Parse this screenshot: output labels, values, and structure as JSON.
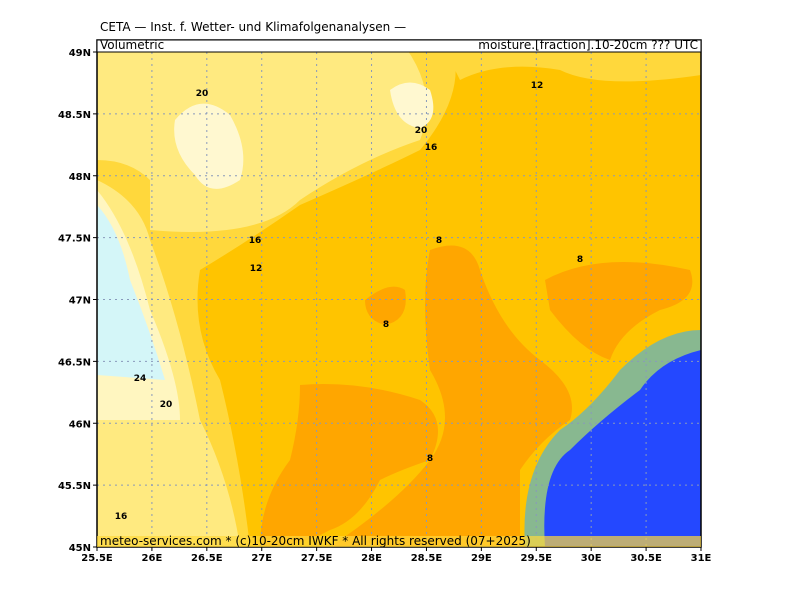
{
  "header": {
    "title": "CETA — Inst. f. Wetter- und Klimafolgenanalysen —",
    "left": "Volumetric",
    "right": "moisture.[fraction].10-20cm ??? UTC"
  },
  "footer": "meteo-services.com * (c)10-20cm IWKF * All rights reserved (07+2025)",
  "map": {
    "lonlim": [
      25.5,
      31
    ],
    "latlim": [
      45,
      49
    ],
    "lon_ticks": [
      {
        "value": 25.5,
        "label": "25.5E"
      },
      {
        "value": 26,
        "label": "26E"
      },
      {
        "value": 26.5,
        "label": "26.5E"
      },
      {
        "value": 27,
        "label": "27E"
      },
      {
        "value": 27.5,
        "label": "27.5E"
      },
      {
        "value": 28,
        "label": "28E"
      },
      {
        "value": 28.5,
        "label": "28.5E"
      },
      {
        "value": 29,
        "label": "29E"
      },
      {
        "value": 29.5,
        "label": "29.5E"
      },
      {
        "value": 30,
        "label": "30E"
      },
      {
        "value": 30.5,
        "label": "30.5E"
      },
      {
        "value": 31,
        "label": "31E"
      }
    ],
    "lat_ticks": [
      {
        "value": 45,
        "label": "45N"
      },
      {
        "value": 45.5,
        "label": "45.5N"
      },
      {
        "value": 46,
        "label": "46N"
      },
      {
        "value": 46.5,
        "label": "46.5N"
      },
      {
        "value": 47,
        "label": "47N"
      },
      {
        "value": 47.5,
        "label": "47.5N"
      },
      {
        "value": 48,
        "label": "48N"
      },
      {
        "value": 48.5,
        "label": "48.5N"
      },
      {
        "value": 49,
        "label": "49N"
      }
    ],
    "contour_labels": [
      "20",
      "12",
      "20",
      "16",
      "16",
      "12",
      "8",
      "8",
      "8",
      "8",
      "24",
      "20",
      "16"
    ]
  }
}
